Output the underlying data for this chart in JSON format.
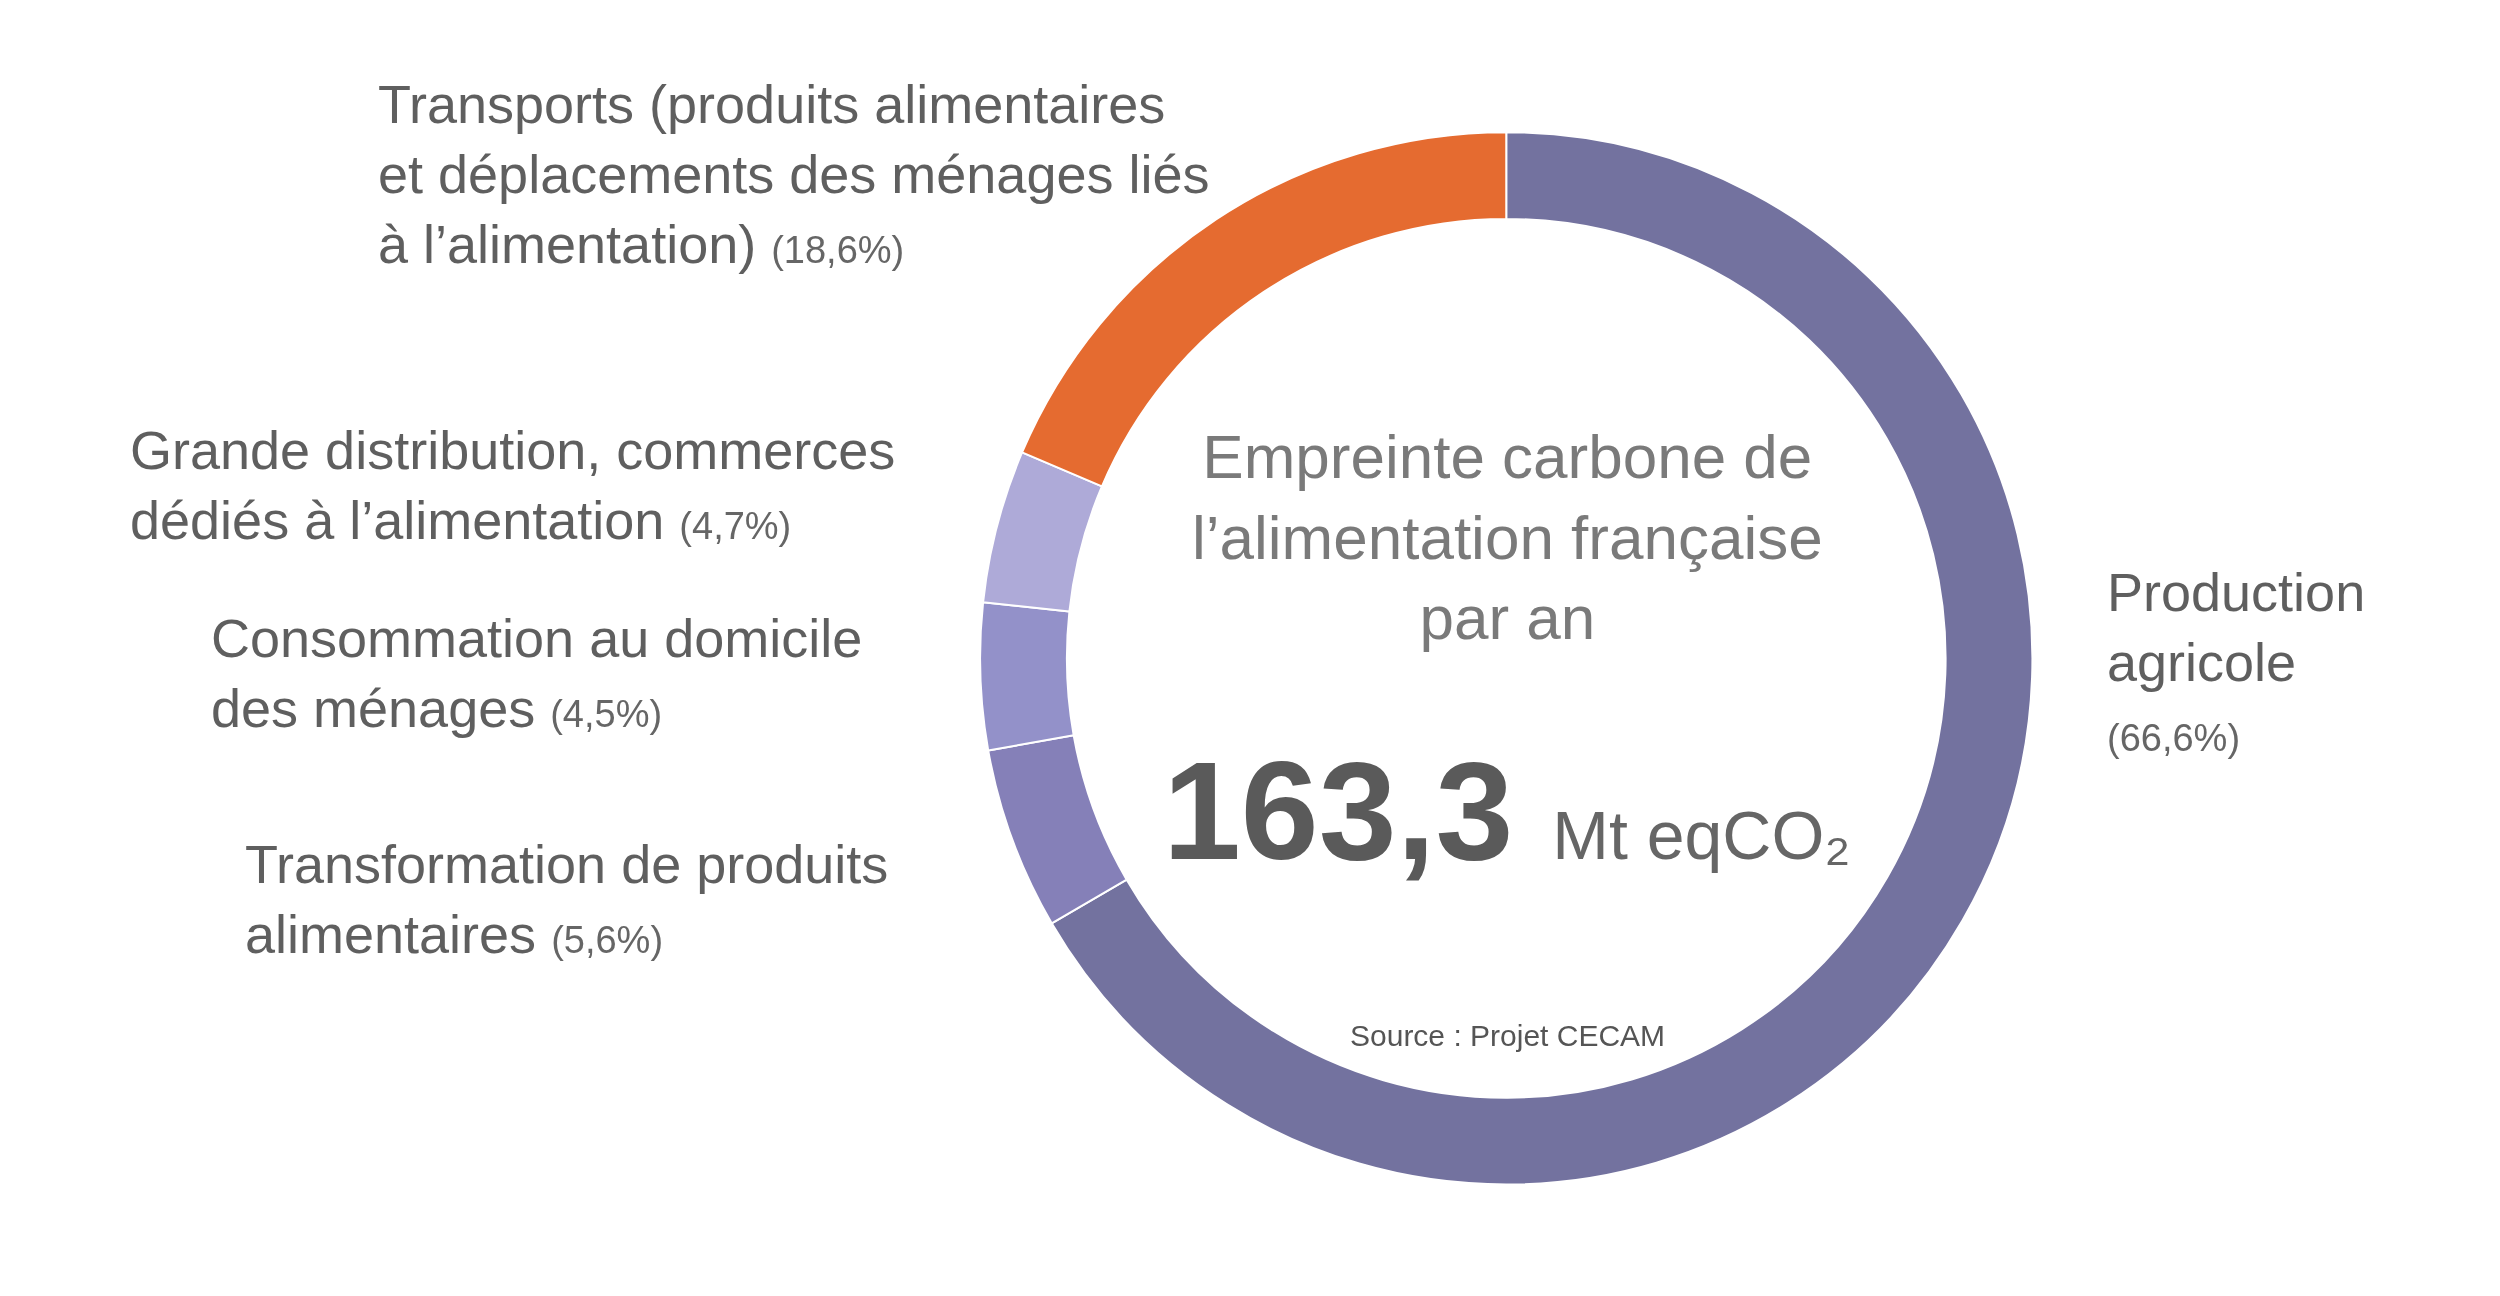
{
  "chart_data": {
    "type": "donut",
    "title": "Empreinte carbone de l’alimentation française par an",
    "categories": [
      "Production agricole",
      "Transformation de produits alimentaires",
      "Consommation au domicile des ménages",
      "Grande distribution, commerces dédiés à l’alimentation",
      "Transports (produits alimentaires et déplacements des ménages liés à l’alimentation)"
    ],
    "values": [
      66.6,
      5.6,
      4.5,
      4.7,
      18.6
    ],
    "value_labels": [
      "(66,6%)",
      "(5,6%)",
      "(4,5%)",
      "(4,7%)",
      "(18,6%)"
    ],
    "colors": [
      "#73729f",
      "#8580b8",
      "#9391c9",
      "#aeaad8",
      "#e56b30"
    ],
    "annotations": [
      "163,3 Mt eqCO₂",
      "Source : Projet CECAM"
    ],
    "legend": false
  }
}
